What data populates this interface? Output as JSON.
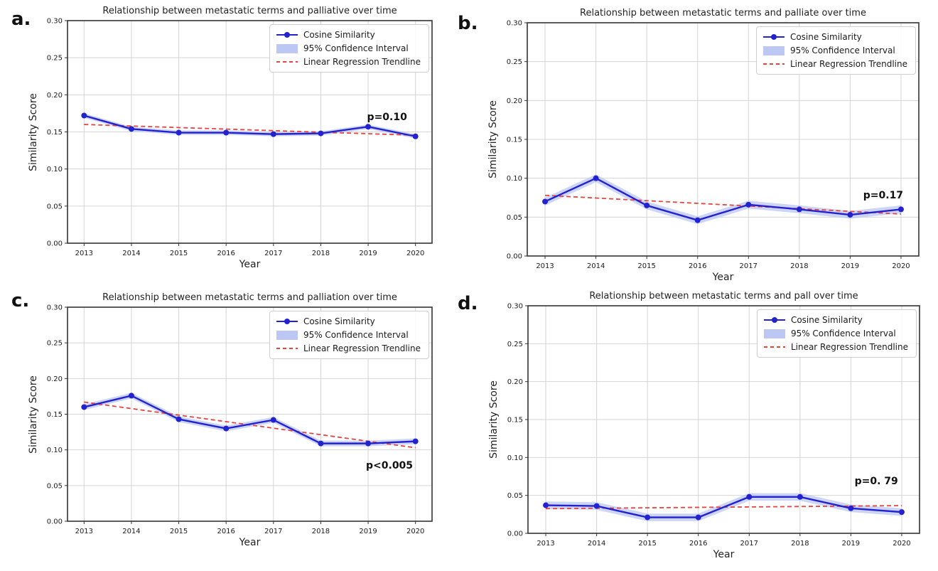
{
  "figure": {
    "background": "#ffffff"
  },
  "colors": {
    "line": "#2222cf",
    "marker": "#2222cf",
    "ci": "#bcc7f3",
    "trend": "#e8433c",
    "grid": "#d4d4d4",
    "spine": "#333333",
    "tick_text": "#1a1a1a",
    "title_text": "#222222"
  },
  "legend": {
    "items": [
      {
        "label": "Cosine Similarity",
        "swatch": "line-with-marker"
      },
      {
        "label": "95% Confidence Interval",
        "swatch": "filled-patch"
      },
      {
        "label": "Linear Regression Trendline",
        "swatch": "dashed-line"
      }
    ],
    "position": "upper right"
  },
  "axis": {
    "xlabel": "Year",
    "ylabel": "Similarity Score",
    "x_ticks": [
      "2013",
      "2014",
      "2015",
      "2016",
      "2017",
      "2018",
      "2019",
      "2020"
    ],
    "y_ticks": [
      "0.00",
      "0.05",
      "0.10",
      "0.15",
      "0.20",
      "0.25",
      "0.30"
    ],
    "ylim": [
      0,
      0.3
    ]
  },
  "chart_data": [
    {
      "type": "line",
      "panel_label": "a.",
      "title": "Relationship between metastatic terms and palliative over time",
      "xlabel": "Year",
      "ylabel": "Similarity Score",
      "x": [
        2013,
        2014,
        2015,
        2016,
        2017,
        2018,
        2019,
        2020
      ],
      "ylim": [
        0,
        0.3
      ],
      "grid": true,
      "legend_position": "upper right",
      "series": [
        {
          "name": "Cosine Similarity",
          "values": [
            0.172,
            0.154,
            0.149,
            0.149,
            0.147,
            0.148,
            0.157,
            0.144
          ]
        },
        {
          "name": "95% Confidence Interval",
          "ci_halfwidth": 0.003
        },
        {
          "name": "Linear Regression Trendline",
          "trend_endpoints": [
            0.16,
            0.1455
          ]
        }
      ],
      "annotation": {
        "text": "p=0.10",
        "x": 2019.4,
        "y": 0.17
      }
    },
    {
      "type": "line",
      "panel_label": "b.",
      "title": "Relationship between metastatic terms and palliate over time",
      "xlabel": "Year",
      "ylabel": "Similarity Score",
      "x": [
        2013,
        2014,
        2015,
        2016,
        2017,
        2018,
        2019,
        2020
      ],
      "ylim": [
        0,
        0.3
      ],
      "grid": true,
      "legend_position": "upper right",
      "series": [
        {
          "name": "Cosine Similarity",
          "values": [
            0.07,
            0.1,
            0.065,
            0.046,
            0.066,
            0.06,
            0.053,
            0.06
          ]
        },
        {
          "name": "95% Confidence Interval",
          "ci_halfwidth": 0.005
        },
        {
          "name": "Linear Regression Trendline",
          "trend_endpoints": [
            0.078,
            0.054
          ]
        }
      ],
      "annotation": {
        "text": "p=0.17",
        "x": 2019.65,
        "y": 0.078
      }
    },
    {
      "type": "line",
      "panel_label": "c.",
      "title": "Relationship between metastatic terms and palliation over time",
      "xlabel": "Year",
      "ylabel": "Similarity Score",
      "x": [
        2013,
        2014,
        2015,
        2016,
        2017,
        2018,
        2019,
        2020
      ],
      "ylim": [
        0,
        0.3
      ],
      "grid": true,
      "legend_position": "upper right",
      "series": [
        {
          "name": "Cosine Similarity",
          "values": [
            0.16,
            0.176,
            0.143,
            0.13,
            0.142,
            0.109,
            0.109,
            0.112
          ]
        },
        {
          "name": "95% Confidence Interval",
          "ci_halfwidth": 0.004
        },
        {
          "name": "Linear Regression Trendline",
          "trend_endpoints": [
            0.167,
            0.103
          ]
        }
      ],
      "annotation": {
        "text": "p<0.005",
        "x": 2019.45,
        "y": 0.078
      }
    },
    {
      "type": "line",
      "panel_label": "d.",
      "title": "Relationship between metastatic terms and pall over time",
      "xlabel": "Year",
      "ylabel": "Similarity Score",
      "x": [
        2013,
        2014,
        2015,
        2016,
        2017,
        2018,
        2019,
        2020
      ],
      "ylim": [
        0,
        0.3
      ],
      "grid": true,
      "legend_position": "upper right",
      "series": [
        {
          "name": "Cosine Similarity",
          "values": [
            0.037,
            0.036,
            0.021,
            0.021,
            0.048,
            0.048,
            0.033,
            0.028
          ]
        },
        {
          "name": "95% Confidence Interval",
          "ci_halfwidth": 0.005
        },
        {
          "name": "Linear Regression Trendline",
          "trend_endpoints": [
            0.0325,
            0.0365
          ]
        }
      ],
      "annotation": {
        "text": "p=0. 79",
        "x": 2019.5,
        "y": 0.068
      }
    }
  ]
}
